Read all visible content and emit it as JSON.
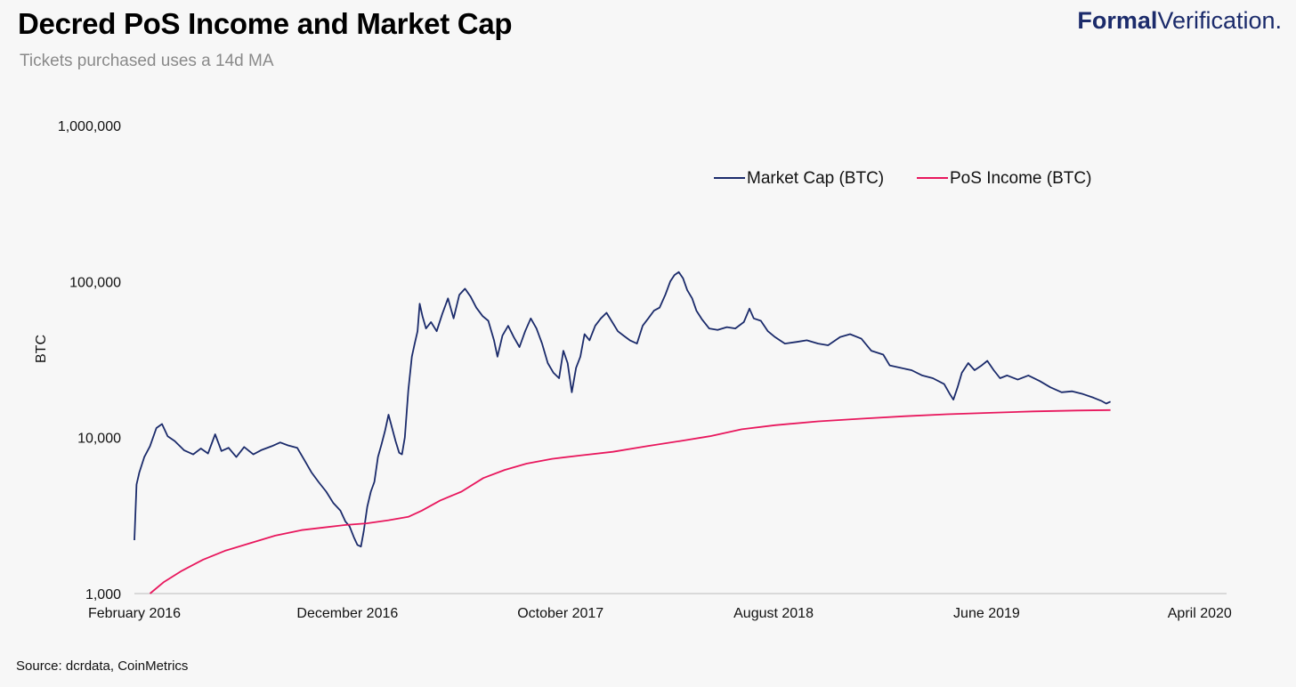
{
  "header": {
    "title": "Decred PoS Income and Market Cap",
    "subtitle": "Tickets purchased uses a 14d MA",
    "logo_bold": "Formal",
    "logo_light": "Verification."
  },
  "footer": {
    "source": "Source: dcrdata, CoinMetrics"
  },
  "colors": {
    "market_cap": "#1b2b6b",
    "pos_income": "#e8175d",
    "background": "#f7f7f7"
  },
  "chart_data": {
    "type": "line",
    "title": "Decred PoS Income and Market Cap",
    "subtitle": "Tickets purchased uses a 14d MA",
    "ylabel": "BTC",
    "xlabel": "",
    "yscale": "log",
    "ylim": [
      1000,
      1000000
    ],
    "xlim": [
      "2016-02-08",
      "2020-04-30"
    ],
    "y_ticks": [
      {
        "value": 1000,
        "label": "1,000"
      },
      {
        "value": 10000,
        "label": "10,000"
      },
      {
        "value": 100000,
        "label": "100,000"
      },
      {
        "value": 1000000,
        "label": "1,000,000"
      }
    ],
    "x_ticks": [
      {
        "date": "2016-02-08",
        "label": "February 2016"
      },
      {
        "date": "2016-12-05",
        "label": "December 2016"
      },
      {
        "date": "2017-10-02",
        "label": "October 2017"
      },
      {
        "date": "2018-07-30",
        "label": "August 2018"
      },
      {
        "date": "2019-05-27",
        "label": "June 2019"
      },
      {
        "date": "2020-03-23",
        "label": "April 2020"
      }
    ],
    "grid": false,
    "legend": "top-right",
    "series": [
      {
        "name": "Market Cap (BTC)",
        "color": "#1b2b6b",
        "points": [
          [
            "2016-02-08",
            2200
          ],
          [
            "2016-02-11",
            5000
          ],
          [
            "2016-02-15",
            6000
          ],
          [
            "2016-02-22",
            7500
          ],
          [
            "2016-03-01",
            8800
          ],
          [
            "2016-03-10",
            11500
          ],
          [
            "2016-03-18",
            12200
          ],
          [
            "2016-03-26",
            10200
          ],
          [
            "2016-04-05",
            9500
          ],
          [
            "2016-04-18",
            8300
          ],
          [
            "2016-05-01",
            7800
          ],
          [
            "2016-05-12",
            8500
          ],
          [
            "2016-05-22",
            7900
          ],
          [
            "2016-06-01",
            10500
          ],
          [
            "2016-06-10",
            8200
          ],
          [
            "2016-06-20",
            8600
          ],
          [
            "2016-07-01",
            7500
          ],
          [
            "2016-07-12",
            8700
          ],
          [
            "2016-07-25",
            7800
          ],
          [
            "2016-08-05",
            8300
          ],
          [
            "2016-08-20",
            8800
          ],
          [
            "2016-09-01",
            9300
          ],
          [
            "2016-09-12",
            8900
          ],
          [
            "2016-09-25",
            8600
          ],
          [
            "2016-10-05",
            7200
          ],
          [
            "2016-10-15",
            6000
          ],
          [
            "2016-10-25",
            5200
          ],
          [
            "2016-11-05",
            4500
          ],
          [
            "2016-11-15",
            3800
          ],
          [
            "2016-11-25",
            3400
          ],
          [
            "2016-12-02",
            2900
          ],
          [
            "2016-12-08",
            2700
          ],
          [
            "2016-12-14",
            2300
          ],
          [
            "2016-12-19",
            2050
          ],
          [
            "2016-12-24",
            2000
          ],
          [
            "2016-12-28",
            2500
          ],
          [
            "2017-01-02",
            3600
          ],
          [
            "2017-01-07",
            4500
          ],
          [
            "2017-01-12",
            5200
          ],
          [
            "2017-01-17",
            7500
          ],
          [
            "2017-01-22",
            9000
          ],
          [
            "2017-01-27",
            11000
          ],
          [
            "2017-02-01",
            14000
          ],
          [
            "2017-02-06",
            11500
          ],
          [
            "2017-02-11",
            9500
          ],
          [
            "2017-02-16",
            8000
          ],
          [
            "2017-02-20",
            7800
          ],
          [
            "2017-02-24",
            10000
          ],
          [
            "2017-03-01",
            20000
          ],
          [
            "2017-03-06",
            33000
          ],
          [
            "2017-03-10",
            40000
          ],
          [
            "2017-03-14",
            48000
          ],
          [
            "2017-03-17",
            72000
          ],
          [
            "2017-03-21",
            60000
          ],
          [
            "2017-03-26",
            50000
          ],
          [
            "2017-04-02",
            55000
          ],
          [
            "2017-04-10",
            48000
          ],
          [
            "2017-04-18",
            62000
          ],
          [
            "2017-04-26",
            78000
          ],
          [
            "2017-05-04",
            58000
          ],
          [
            "2017-05-12",
            82000
          ],
          [
            "2017-05-20",
            90000
          ],
          [
            "2017-05-28",
            80000
          ],
          [
            "2017-06-05",
            68000
          ],
          [
            "2017-06-14",
            60000
          ],
          [
            "2017-06-22",
            56000
          ],
          [
            "2017-06-30",
            42000
          ],
          [
            "2017-07-05",
            33000
          ],
          [
            "2017-07-12",
            45000
          ],
          [
            "2017-07-20",
            52000
          ],
          [
            "2017-07-28",
            44000
          ],
          [
            "2017-08-05",
            38000
          ],
          [
            "2017-08-13",
            48000
          ],
          [
            "2017-08-21",
            58000
          ],
          [
            "2017-08-29",
            50000
          ],
          [
            "2017-09-06",
            40000
          ],
          [
            "2017-09-14",
            30000
          ],
          [
            "2017-09-22",
            26000
          ],
          [
            "2017-09-30",
            24000
          ],
          [
            "2017-10-06",
            36000
          ],
          [
            "2017-10-12",
            30000
          ],
          [
            "2017-10-18",
            19500
          ],
          [
            "2017-10-24",
            28000
          ],
          [
            "2017-10-30",
            33000
          ],
          [
            "2017-11-05",
            46000
          ],
          [
            "2017-11-12",
            42000
          ],
          [
            "2017-11-20",
            52000
          ],
          [
            "2017-11-28",
            58000
          ],
          [
            "2017-12-06",
            63000
          ],
          [
            "2017-12-14",
            55000
          ],
          [
            "2017-12-22",
            48000
          ],
          [
            "2017-12-30",
            45000
          ],
          [
            "2018-01-08",
            42000
          ],
          [
            "2018-01-18",
            40000
          ],
          [
            "2018-01-26",
            52000
          ],
          [
            "2018-02-03",
            58000
          ],
          [
            "2018-02-11",
            65000
          ],
          [
            "2018-02-19",
            68000
          ],
          [
            "2018-02-27",
            82000
          ],
          [
            "2018-03-06",
            100000
          ],
          [
            "2018-03-12",
            110000
          ],
          [
            "2018-03-18",
            115000
          ],
          [
            "2018-03-24",
            105000
          ],
          [
            "2018-03-30",
            88000
          ],
          [
            "2018-04-06",
            78000
          ],
          [
            "2018-04-12",
            65000
          ],
          [
            "2018-04-20",
            57000
          ],
          [
            "2018-04-30",
            50000
          ],
          [
            "2018-05-12",
            49000
          ],
          [
            "2018-05-25",
            51000
          ],
          [
            "2018-06-06",
            50000
          ],
          [
            "2018-06-18",
            55000
          ],
          [
            "2018-06-26",
            67000
          ],
          [
            "2018-07-02",
            58000
          ],
          [
            "2018-07-12",
            56000
          ],
          [
            "2018-07-22",
            48000
          ],
          [
            "2018-08-01",
            44000
          ],
          [
            "2018-08-15",
            40000
          ],
          [
            "2018-09-01",
            41000
          ],
          [
            "2018-09-15",
            42000
          ],
          [
            "2018-10-01",
            40000
          ],
          [
            "2018-10-15",
            39000
          ],
          [
            "2018-11-01",
            44000
          ],
          [
            "2018-11-15",
            46000
          ],
          [
            "2018-12-01",
            43000
          ],
          [
            "2018-12-15",
            36000
          ],
          [
            "2019-01-01",
            34000
          ],
          [
            "2019-01-10",
            29000
          ],
          [
            "2019-01-25",
            28000
          ],
          [
            "2019-02-10",
            27000
          ],
          [
            "2019-02-25",
            25000
          ],
          [
            "2019-03-12",
            24000
          ],
          [
            "2019-03-28",
            22000
          ],
          [
            "2019-04-05",
            19000
          ],
          [
            "2019-04-10",
            17500
          ],
          [
            "2019-04-16",
            21000
          ],
          [
            "2019-04-22",
            26000
          ],
          [
            "2019-05-01",
            30000
          ],
          [
            "2019-05-10",
            27000
          ],
          [
            "2019-05-20",
            29000
          ],
          [
            "2019-05-28",
            31000
          ],
          [
            "2019-06-06",
            27000
          ],
          [
            "2019-06-15",
            24000
          ],
          [
            "2019-06-25",
            25000
          ],
          [
            "2019-07-10",
            23500
          ],
          [
            "2019-07-25",
            25000
          ],
          [
            "2019-08-10",
            23000
          ],
          [
            "2019-08-25",
            21000
          ],
          [
            "2019-09-10",
            19500
          ],
          [
            "2019-09-25",
            19800
          ],
          [
            "2019-10-10",
            19000
          ],
          [
            "2019-10-25",
            18000
          ],
          [
            "2019-11-05",
            17200
          ],
          [
            "2019-11-12",
            16500
          ],
          [
            "2019-11-18",
            17000
          ]
        ]
      },
      {
        "name": "PoS Income (BTC)",
        "color": "#e8175d",
        "points": [
          [
            "2016-03-01",
            1000
          ],
          [
            "2016-03-20",
            1180
          ],
          [
            "2016-04-15",
            1400
          ],
          [
            "2016-05-15",
            1650
          ],
          [
            "2016-06-15",
            1880
          ],
          [
            "2016-07-20",
            2100
          ],
          [
            "2016-08-25",
            2350
          ],
          [
            "2016-10-01",
            2550
          ],
          [
            "2016-11-01",
            2650
          ],
          [
            "2016-12-01",
            2750
          ],
          [
            "2017-01-01",
            2820
          ],
          [
            "2017-02-01",
            2950
          ],
          [
            "2017-03-01",
            3100
          ],
          [
            "2017-03-20",
            3400
          ],
          [
            "2017-04-15",
            3950
          ],
          [
            "2017-05-15",
            4500
          ],
          [
            "2017-06-15",
            5500
          ],
          [
            "2017-07-15",
            6200
          ],
          [
            "2017-08-15",
            6800
          ],
          [
            "2017-09-20",
            7300
          ],
          [
            "2017-11-01",
            7700
          ],
          [
            "2017-12-15",
            8100
          ],
          [
            "2018-02-01",
            8800
          ],
          [
            "2018-03-20",
            9500
          ],
          [
            "2018-05-01",
            10200
          ],
          [
            "2018-06-15",
            11300
          ],
          [
            "2018-08-01",
            12000
          ],
          [
            "2018-10-01",
            12700
          ],
          [
            "2018-12-01",
            13200
          ],
          [
            "2019-02-01",
            13700
          ],
          [
            "2019-04-01",
            14100
          ],
          [
            "2019-06-01",
            14400
          ],
          [
            "2019-08-01",
            14700
          ],
          [
            "2019-10-01",
            14900
          ],
          [
            "2019-11-18",
            15000
          ]
        ]
      }
    ]
  }
}
